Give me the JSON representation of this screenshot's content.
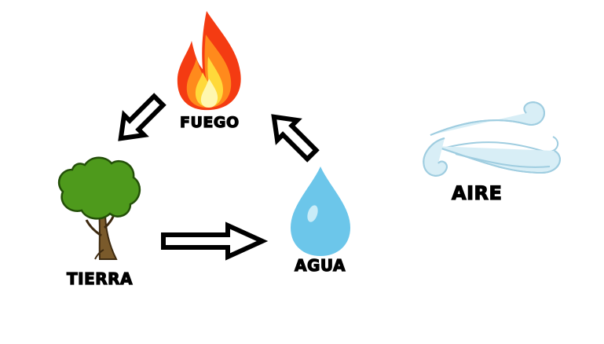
{
  "elements": {
    "fire": {
      "label": "FUEGO"
    },
    "earth": {
      "label": "TIERRA"
    },
    "water": {
      "label": "AGUA"
    },
    "air": {
      "label": "AIRE"
    }
  },
  "colors": {
    "background": "#ffffff",
    "label": "#000000",
    "fire_outer": "#f43b12",
    "fire_mid": "#ff8a1c",
    "fire_inner": "#ffd93a",
    "fire_core": "#fff7b0",
    "tree_foliage": "#4e9a1c",
    "tree_trunk": "#7a5a2b",
    "water_drop": "#6cc6ea",
    "wind": "#cbe7f2",
    "arrow_fill": "#ffffff",
    "arrow_stroke": "#000000"
  },
  "icons": [
    "fire-icon",
    "tree-icon",
    "water-drop-icon",
    "wind-icon"
  ]
}
